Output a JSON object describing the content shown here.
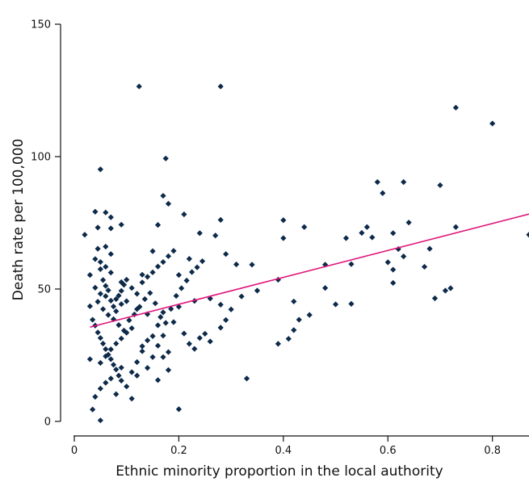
{
  "chart_data": {
    "type": "scatter",
    "title": "",
    "xlabel": "Ethnic minority proportion in the local authority",
    "ylabel": "Death rate per 100,000",
    "xlim": [
      0,
      0.87
    ],
    "ylim": [
      0,
      150
    ],
    "x_ticks": [
      0,
      0.2,
      0.4,
      0.6,
      0.8
    ],
    "x_tick_labels": [
      "0",
      "0.2",
      "0.4",
      "0.6",
      "0.8"
    ],
    "y_ticks": [
      0,
      50,
      100,
      150
    ],
    "y_tick_labels": [
      "0",
      "50",
      "100",
      "150"
    ],
    "grid": false,
    "legend": "none",
    "colors": {
      "points": "#0d2a4a",
      "fit_line": "#e0157a",
      "axis": "#111111"
    },
    "fit_line": {
      "x": [
        0.03,
        0.87
      ],
      "y": [
        35.6,
        78.3
      ]
    },
    "series": [
      {
        "marker": "diamond",
        "points": [
          [
            0.124,
            126.5
          ],
          [
            0.28,
            126.5
          ],
          [
            0.73,
            118.5
          ],
          [
            0.8,
            112.5
          ],
          [
            0.175,
            99.3
          ],
          [
            0.05,
            95.2
          ],
          [
            0.58,
            90.4
          ],
          [
            0.63,
            90.4
          ],
          [
            0.59,
            86.2
          ],
          [
            0.17,
            85.2
          ],
          [
            0.18,
            82.2
          ],
          [
            0.04,
            79.2
          ],
          [
            0.06,
            78.9
          ],
          [
            0.21,
            78.2
          ],
          [
            0.07,
            77.1
          ],
          [
            0.4,
            76.0
          ],
          [
            0.64,
            75.1
          ],
          [
            0.28,
            76.1
          ],
          [
            0.09,
            74.3
          ],
          [
            0.16,
            74.2
          ],
          [
            0.045,
            73.2
          ],
          [
            0.07,
            72.9
          ],
          [
            0.56,
            73.4
          ],
          [
            0.73,
            73.4
          ],
          [
            0.02,
            70.5
          ],
          [
            0.4,
            69.2
          ],
          [
            0.52,
            69.2
          ],
          [
            0.57,
            69.5
          ],
          [
            0.87,
            70.5
          ],
          [
            0.27,
            70.2
          ],
          [
            0.24,
            71.1
          ],
          [
            0.68,
            65.2
          ],
          [
            0.44,
            73.4
          ],
          [
            0.55,
            71.2
          ],
          [
            0.61,
            71.1
          ],
          [
            0.045,
            65.2
          ],
          [
            0.06,
            66.0
          ],
          [
            0.07,
            63.2
          ],
          [
            0.15,
            64.3
          ],
          [
            0.19,
            64.4
          ],
          [
            0.22,
            61.4
          ],
          [
            0.29,
            63.2
          ],
          [
            0.31,
            59.3
          ],
          [
            0.05,
            60.2
          ],
          [
            0.06,
            58.4
          ],
          [
            0.07,
            56.2
          ],
          [
            0.03,
            55.3
          ],
          [
            0.09,
            52.6
          ],
          [
            0.13,
            55.4
          ],
          [
            0.2,
            55.3
          ],
          [
            0.34,
            59.2
          ],
          [
            0.48,
            59.2
          ],
          [
            0.53,
            59.4
          ],
          [
            0.62,
            65.1
          ],
          [
            0.63,
            62.3
          ],
          [
            0.6,
            60.1
          ],
          [
            0.61,
            57.3
          ],
          [
            0.67,
            58.4
          ],
          [
            0.61,
            52.3
          ],
          [
            0.5,
            44.2
          ],
          [
            0.53,
            44.4
          ],
          [
            0.7,
            89.2
          ],
          [
            0.71,
            49.4
          ],
          [
            0.72,
            50.3
          ],
          [
            0.69,
            46.5
          ],
          [
            0.04,
            50.5
          ],
          [
            0.05,
            48.2
          ],
          [
            0.06,
            47.3
          ],
          [
            0.08,
            46.2
          ],
          [
            0.09,
            44.3
          ],
          [
            0.1,
            45.4
          ],
          [
            0.12,
            42.4
          ],
          [
            0.14,
            40.5
          ],
          [
            0.17,
            41.2
          ],
          [
            0.2,
            43.3
          ],
          [
            0.23,
            45.5
          ],
          [
            0.26,
            46.4
          ],
          [
            0.28,
            44.1
          ],
          [
            0.3,
            42.3
          ],
          [
            0.32,
            47.2
          ],
          [
            0.35,
            49.4
          ],
          [
            0.39,
            53.5
          ],
          [
            0.42,
            45.3
          ],
          [
            0.45,
            40.2
          ],
          [
            0.48,
            50.4
          ],
          [
            0.39,
            29.3
          ],
          [
            0.41,
            31.2
          ],
          [
            0.42,
            34.5
          ],
          [
            0.43,
            38.4
          ],
          [
            0.33,
            16.2
          ],
          [
            0.2,
            4.6
          ],
          [
            0.05,
            0.4
          ],
          [
            0.035,
            4.5
          ],
          [
            0.04,
            9.3
          ],
          [
            0.05,
            12.4
          ],
          [
            0.06,
            14.6
          ],
          [
            0.07,
            16.2
          ],
          [
            0.08,
            10.3
          ],
          [
            0.11,
            8.6
          ],
          [
            0.09,
            20.3
          ],
          [
            0.12,
            17.3
          ],
          [
            0.16,
            15.6
          ],
          [
            0.18,
            19.4
          ],
          [
            0.03,
            23.5
          ],
          [
            0.05,
            22.1
          ],
          [
            0.06,
            24.6
          ],
          [
            0.07,
            27.2
          ],
          [
            0.08,
            29.4
          ],
          [
            0.09,
            31.3
          ],
          [
            0.1,
            33.5
          ],
          [
            0.11,
            35.2
          ],
          [
            0.13,
            28.4
          ],
          [
            0.14,
            30.6
          ],
          [
            0.15,
            32.2
          ],
          [
            0.16,
            36.3
          ],
          [
            0.19,
            37.5
          ],
          [
            0.21,
            33.2
          ],
          [
            0.22,
            29.3
          ],
          [
            0.24,
            31.5
          ],
          [
            0.26,
            30.2
          ],
          [
            0.28,
            35.4
          ],
          [
            0.29,
            38.3
          ],
          [
            0.17,
            24.3
          ],
          [
            0.23,
            27.4
          ],
          [
            0.25,
            33.1
          ],
          [
            0.045,
            45.2
          ],
          [
            0.055,
            42.4
          ],
          [
            0.065,
            40.2
          ],
          [
            0.075,
            38.6
          ],
          [
            0.085,
            36.4
          ],
          [
            0.095,
            34.3
          ],
          [
            0.105,
            38.2
          ],
          [
            0.115,
            40.4
          ],
          [
            0.125,
            43.3
          ],
          [
            0.135,
            46.2
          ],
          [
            0.145,
            48.5
          ],
          [
            0.155,
            44.6
          ],
          [
            0.165,
            39.4
          ],
          [
            0.175,
            37.2
          ],
          [
            0.185,
            42.5
          ],
          [
            0.195,
            47.4
          ],
          [
            0.205,
            50.3
          ],
          [
            0.215,
            53.2
          ],
          [
            0.225,
            56.4
          ],
          [
            0.235,
            58.2
          ],
          [
            0.245,
            60.5
          ],
          [
            0.035,
            38.4
          ],
          [
            0.04,
            36.2
          ],
          [
            0.045,
            33.6
          ],
          [
            0.05,
            31.5
          ],
          [
            0.055,
            29.4
          ],
          [
            0.06,
            27.3
          ],
          [
            0.065,
            25.2
          ],
          [
            0.07,
            23.5
          ],
          [
            0.075,
            21.4
          ],
          [
            0.08,
            19.6
          ],
          [
            0.085,
            17.3
          ],
          [
            0.09,
            15.4
          ],
          [
            0.1,
            13.2
          ],
          [
            0.11,
            18.6
          ],
          [
            0.12,
            22.4
          ],
          [
            0.13,
            26.5
          ],
          [
            0.14,
            20.2
          ],
          [
            0.15,
            24.3
          ],
          [
            0.16,
            28.6
          ],
          [
            0.17,
            32.4
          ],
          [
            0.18,
            26.2
          ],
          [
            0.04,
            61.3
          ],
          [
            0.05,
            57.5
          ],
          [
            0.055,
            53.4
          ],
          [
            0.06,
            51.2
          ],
          [
            0.065,
            49.5
          ],
          [
            0.07,
            45.6
          ],
          [
            0.075,
            43.4
          ],
          [
            0.08,
            41.6
          ],
          [
            0.085,
            47.5
          ],
          [
            0.09,
            49.3
          ],
          [
            0.095,
            51.6
          ],
          [
            0.1,
            53.5
          ],
          [
            0.11,
            50.4
          ],
          [
            0.12,
            48.2
          ],
          [
            0.13,
            52.5
          ],
          [
            0.14,
            54.6
          ],
          [
            0.15,
            56.3
          ],
          [
            0.16,
            58.5
          ],
          [
            0.17,
            60.2
          ],
          [
            0.18,
            62.4
          ],
          [
            0.03,
            43.5
          ]
        ]
      }
    ]
  }
}
